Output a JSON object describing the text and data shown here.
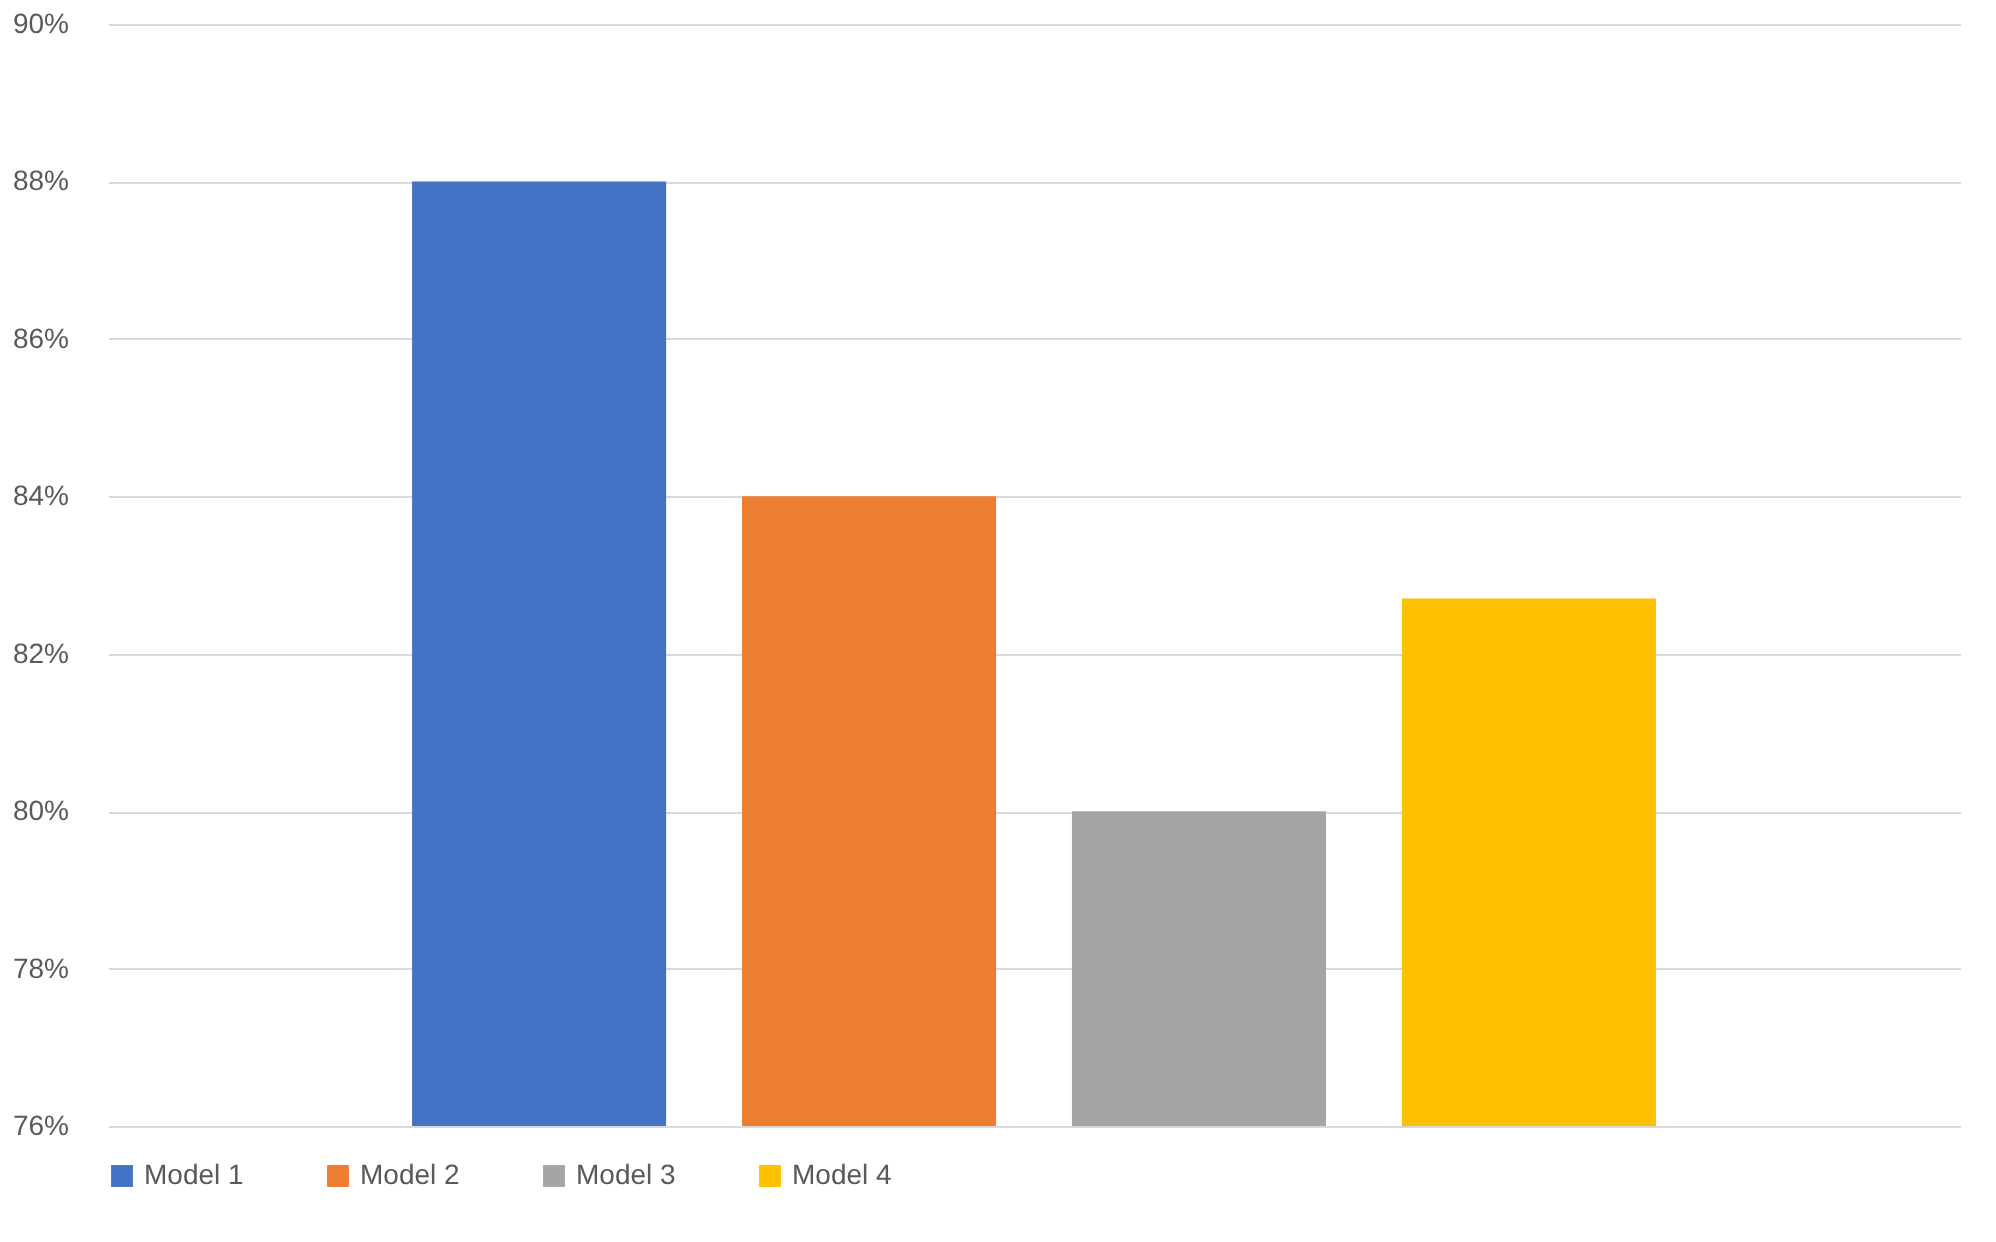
{
  "chart_data": {
    "type": "bar",
    "categories": [
      null
    ],
    "series": [
      {
        "name": "Model 1",
        "color": "#4472c4",
        "values": [
          88
        ]
      },
      {
        "name": "Model 2",
        "color": "#ed7d31",
        "values": [
          84
        ]
      },
      {
        "name": "Model 3",
        "color": "#a5a5a5",
        "values": [
          80
        ]
      },
      {
        "name": "Model 4",
        "color": "#ffc000",
        "values": [
          82.7
        ]
      }
    ],
    "ylim": [
      76,
      90
    ],
    "yticks": [
      {
        "value": 76,
        "label": "76%"
      },
      {
        "value": 78,
        "label": "78%"
      },
      {
        "value": 80,
        "label": "80%"
      },
      {
        "value": 82,
        "label": "82%"
      },
      {
        "value": 84,
        "label": "84%"
      },
      {
        "value": 86,
        "label": "86%"
      },
      {
        "value": 88,
        "label": "88%"
      },
      {
        "value": 90,
        "label": "90%"
      }
    ],
    "grid": "y",
    "legend": "bottom"
  }
}
